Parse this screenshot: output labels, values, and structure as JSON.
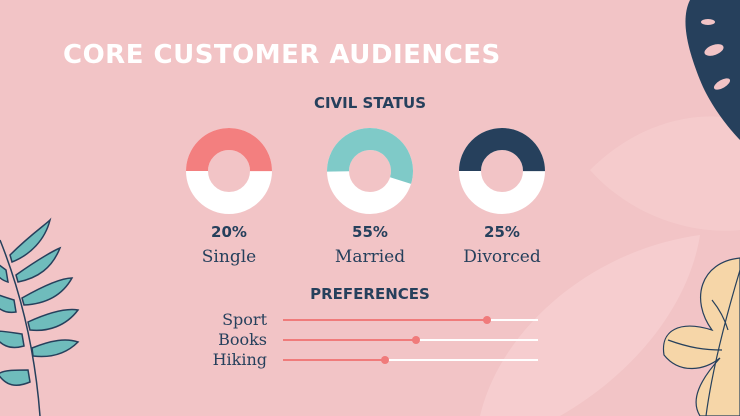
{
  "slide": {
    "title": "CORE CUSTOMER AUDIENCES"
  },
  "colors": {
    "background": "#f2c4c6",
    "coral": "#f37f7f",
    "teal": "#7fcac8",
    "navy": "#26405c",
    "white": "#ffffff",
    "slider": "#f07b7b"
  },
  "chart_data": [
    {
      "type": "pie",
      "title": "CIVIL STATUS",
      "style": "donut",
      "series": [
        {
          "name": "Single",
          "value": 20,
          "label": "20%",
          "color": "#f37f7f"
        },
        {
          "name": "Married",
          "value": 55,
          "label": "55%",
          "color": "#7fcac8"
        },
        {
          "name": "Divorced",
          "value": 25,
          "label": "25%",
          "color": "#26405c"
        }
      ]
    },
    {
      "type": "bar",
      "title": "PREFERENCES",
      "style": "slider",
      "categories": [
        "Sport",
        "Books",
        "Hiking"
      ],
      "values": [
        80,
        52,
        40
      ],
      "xlim": [
        0,
        100
      ]
    }
  ]
}
